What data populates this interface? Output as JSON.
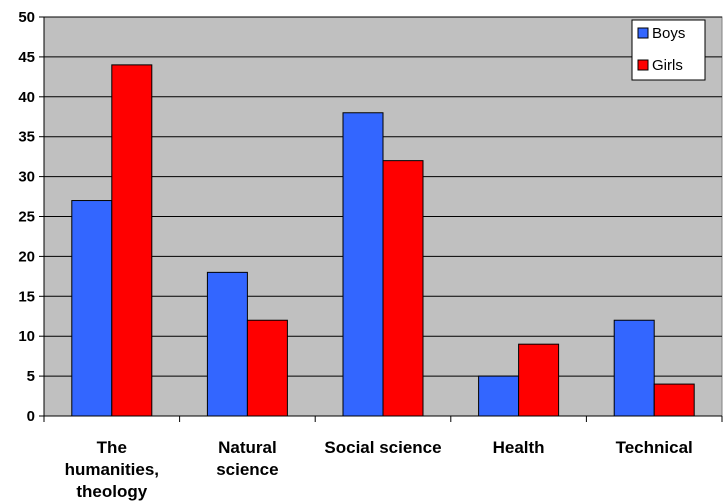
{
  "chart_data": {
    "type": "bar",
    "categories": [
      [
        "The",
        "humanities,",
        "theology"
      ],
      [
        "Natural",
        "science"
      ],
      [
        "Social science"
      ],
      [
        "Health"
      ],
      [
        "Technical"
      ]
    ],
    "series": [
      {
        "name": "Boys",
        "color": "#3366ff",
        "values": [
          27,
          18,
          38,
          5,
          12
        ]
      },
      {
        "name": "Girls",
        "color": "#ff0000",
        "values": [
          44,
          12,
          32,
          9,
          4
        ]
      }
    ],
    "title": "",
    "xlabel": "",
    "ylabel": "",
    "ylim": [
      0,
      50
    ],
    "yticks": [
      0,
      5,
      10,
      15,
      20,
      25,
      30,
      35,
      40,
      45,
      50
    ],
    "grid": true,
    "plot_background": "#c0c0c0",
    "legend_position": "top-right"
  }
}
